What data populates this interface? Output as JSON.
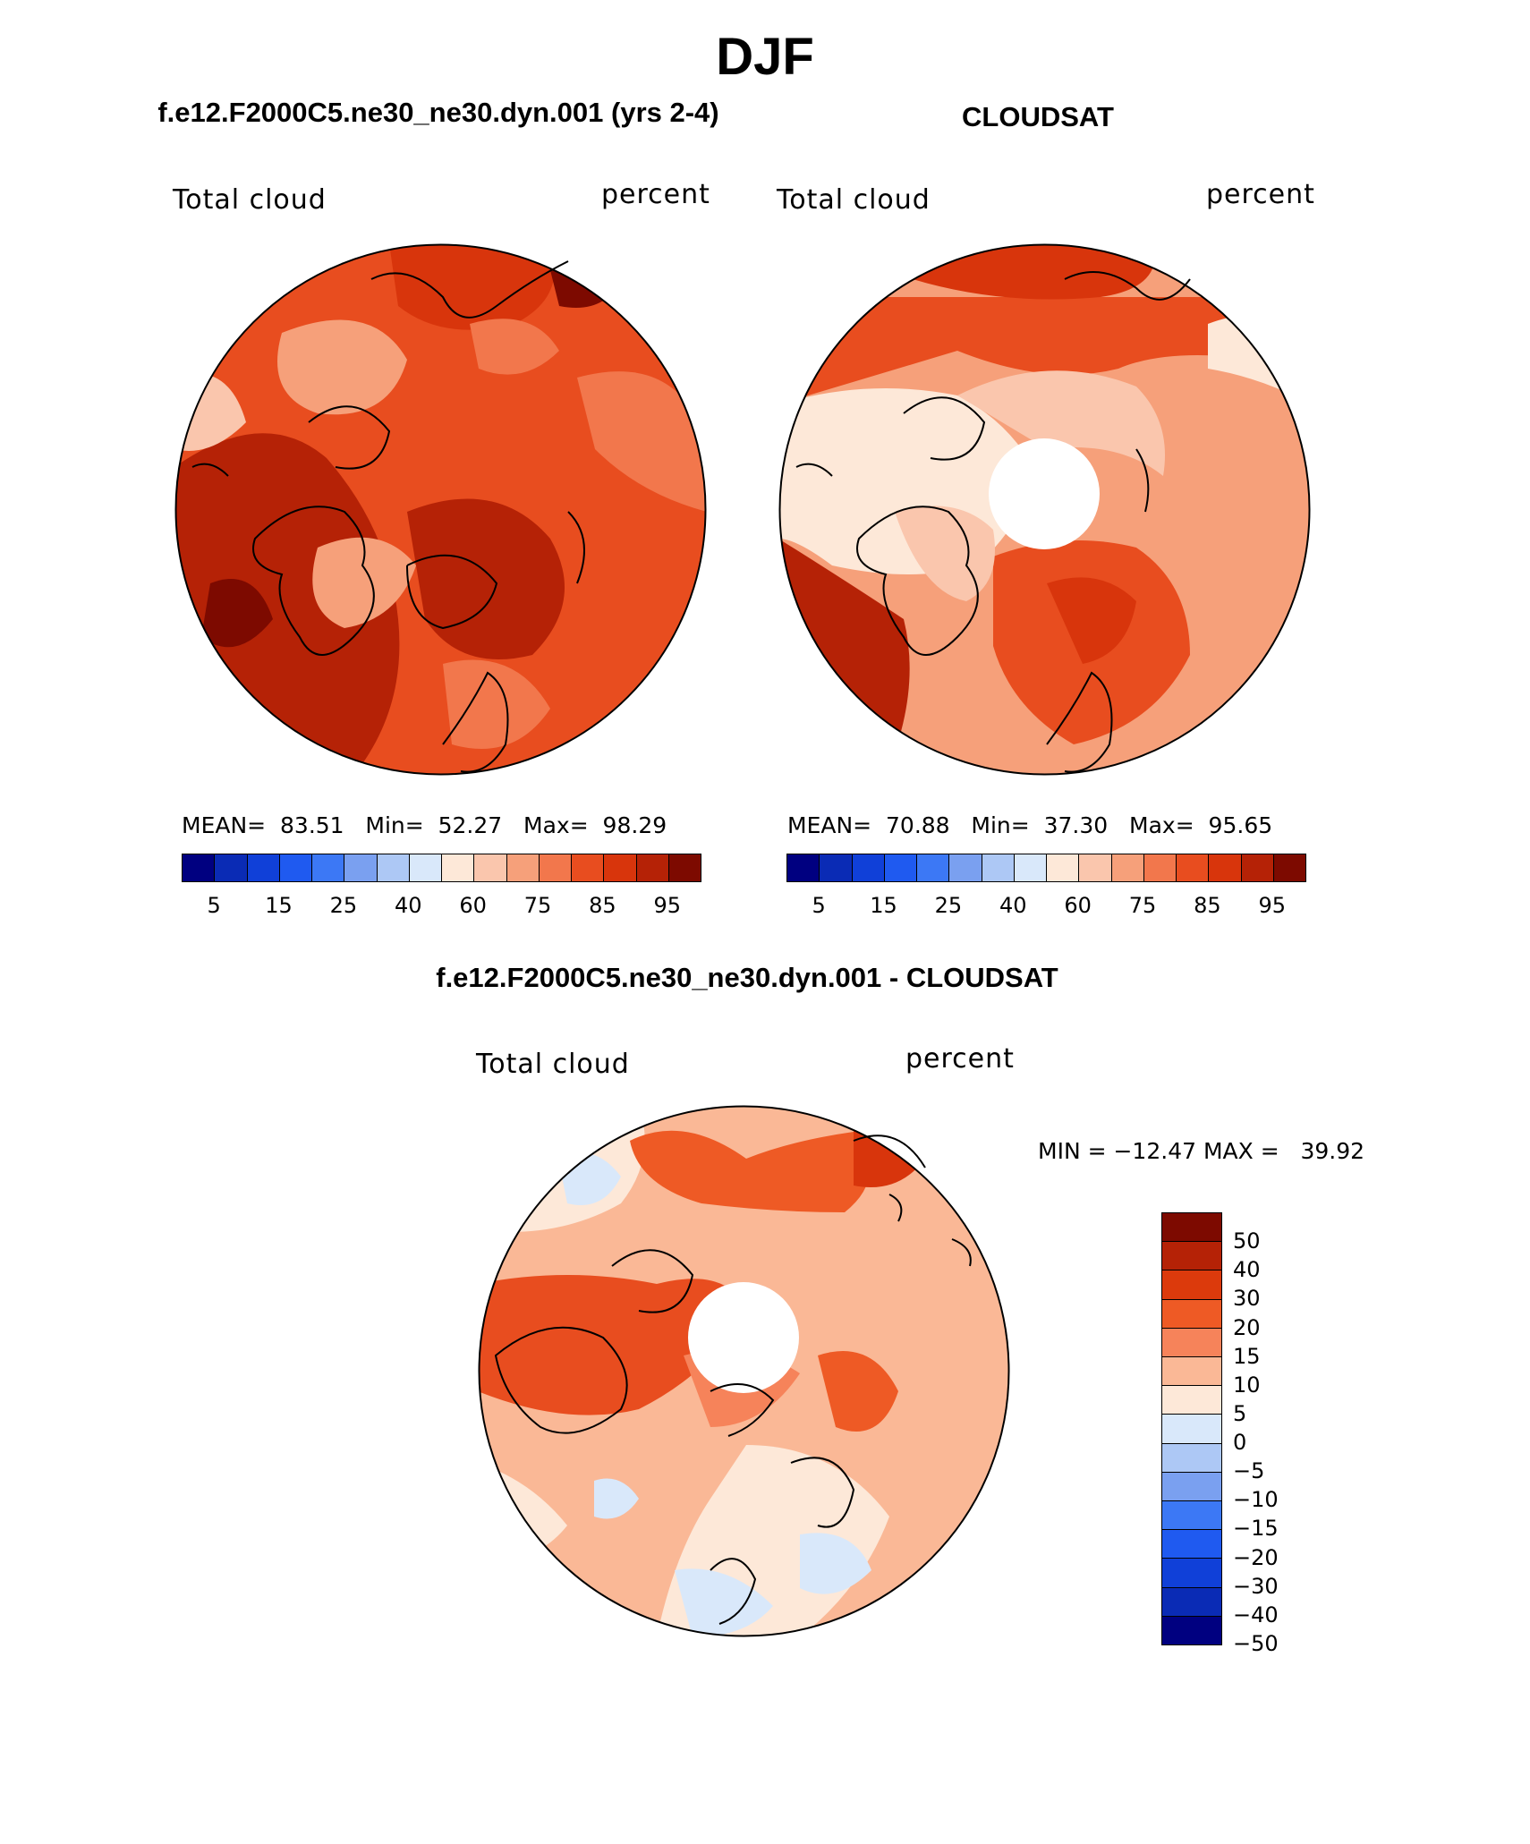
{
  "title": "DJF",
  "panels": [
    {
      "subtitle": "f.e12.F2000C5.ne30_ne30.dyn.001 (yrs 2-4)",
      "variable": "Total cloud",
      "units": "percent",
      "stats": {
        "mean": "83.51",
        "min": "52.27",
        "max": "98.29"
      },
      "stats_text": "MEAN=  83.51   Min=  52.27   Max=  98.29"
    },
    {
      "subtitle": "CLOUDSAT",
      "variable": "Total cloud",
      "units": "percent",
      "stats": {
        "mean": "70.88",
        "min": "37.30",
        "max": "95.65"
      },
      "stats_text": "MEAN=  70.88   Min=  37.30   Max=  95.65"
    }
  ],
  "diff_panel": {
    "subtitle": "f.e12.F2000C5.ne30_ne30.dyn.001 - CLOUDSAT",
    "variable": "Total cloud",
    "units": "percent",
    "minmax_text": "MIN = −12.47 MAX =   39.92",
    "min": -12.47,
    "max": 39.92
  },
  "abs_colorbar": {
    "colors": [
      "#000080",
      "#0a2bb5",
      "#1040d8",
      "#1f5af0",
      "#3c78f5",
      "#7aa0f0",
      "#adc8f5",
      "#d9e8fa",
      "#fde8d8",
      "#fac6ad",
      "#f6a07a",
      "#f2774c",
      "#e84d1f",
      "#d8350c",
      "#b52206",
      "#7d0a00"
    ],
    "ticks": [
      "5",
      "15",
      "25",
      "40",
      "60",
      "75",
      "85",
      "95"
    ]
  },
  "diff_colorbar": {
    "colors": [
      "#7d0a00",
      "#b52206",
      "#dc3a0c",
      "#ee5a25",
      "#f6835a",
      "#fab896",
      "#fde8d8",
      "#d9e8fa",
      "#adc8f5",
      "#7aa0f0",
      "#3c78f5",
      "#1f5af0",
      "#1040d8",
      "#0a2bb5",
      "#000080"
    ],
    "ticks": [
      "50",
      "40",
      "30",
      "20",
      "15",
      "10",
      "5",
      "0",
      "−5",
      "−10",
      "−15",
      "−20",
      "−30",
      "−40",
      "−50"
    ]
  }
}
